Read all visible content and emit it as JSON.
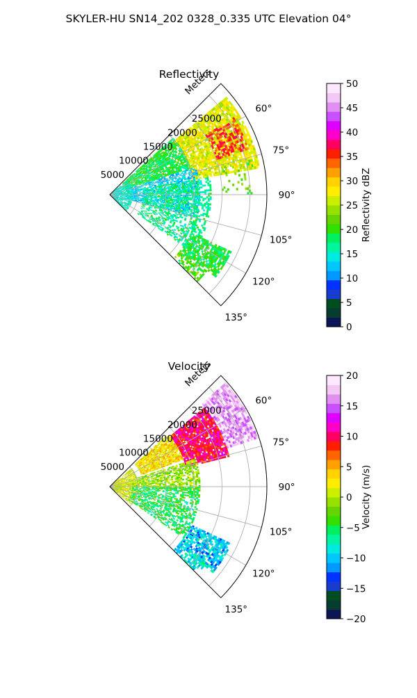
{
  "figure": {
    "suptitle": "SKYLER-HU  SN14_202  0328_0.335 UTC Elevation 04°"
  },
  "chart_data": [
    {
      "type": "heatmap",
      "subtype": "polar-sector",
      "title": "Reflectivity",
      "radial_axis_label": "Meters",
      "radial_ticks": [
        "5000",
        "10000",
        "15000",
        "20000",
        "25000"
      ],
      "radial_tick_values": [
        5000,
        10000,
        15000,
        20000,
        25000
      ],
      "radial_max": 28000,
      "azimuth_range_deg": [
        45,
        135
      ],
      "angular_ticks": [
        "60°",
        "75°",
        "90°",
        "105°",
        "120°",
        "135°"
      ],
      "angular_tick_values": [
        60,
        75,
        90,
        105,
        120,
        135
      ],
      "grid": true,
      "colorbar": {
        "label": "Reflectivity dBZ",
        "ticks": [
          "0",
          "5",
          "10",
          "15",
          "20",
          "25",
          "30",
          "35",
          "40",
          "45",
          "50"
        ],
        "tick_values": [
          0,
          5,
          10,
          15,
          20,
          25,
          30,
          35,
          40,
          45,
          50
        ],
        "range": [
          0,
          50
        ]
      },
      "colormap": [
        "#0b1454",
        "#063d2f",
        "#004d1f",
        "#1a3ccd",
        "#0033ff",
        "#0099ff",
        "#00c8ff",
        "#00ebe0",
        "#00f5a0",
        "#00f060",
        "#33e000",
        "#66d400",
        "#99e000",
        "#ccef00",
        "#ffee00",
        "#ffd200",
        "#ffa000",
        "#ff6400",
        "#ff1e00",
        "#ff0060",
        "#ff00c8",
        "#e000ff",
        "#c850ff",
        "#e090f0",
        "#f4c8f4",
        "#fce8fc"
      ],
      "echo_regions": [
        {
          "az": [
            50,
            80
          ],
          "range": [
            15000,
            27000
          ],
          "value": 27,
          "density": 0.85
        },
        {
          "az": [
            58,
            72
          ],
          "range": [
            20000,
            26000
          ],
          "value": 35,
          "density": 0.55
        },
        {
          "az": [
            48,
            72
          ],
          "range": [
            3000,
            15000
          ],
          "value": 19,
          "density": 0.8
        },
        {
          "az": [
            72,
            105
          ],
          "range": [
            3000,
            16000
          ],
          "value": 13,
          "density": 0.55
        },
        {
          "az": [
            80,
            125
          ],
          "range": [
            6000,
            18000
          ],
          "value": 17,
          "density": 0.45
        },
        {
          "az": [
            115,
            128
          ],
          "range": [
            16000,
            24000
          ],
          "value": 19,
          "density": 0.7
        },
        {
          "az": [
            128,
            136
          ],
          "range": [
            16000,
            22000
          ],
          "value": 21,
          "density": 0.6
        },
        {
          "az": [
            50,
            135
          ],
          "range": [
            300,
            4000
          ],
          "value": 15,
          "density": 0.5
        },
        {
          "az": [
            76,
            90
          ],
          "range": [
            20000,
            26000
          ],
          "value": 22,
          "density": 0.12
        }
      ]
    },
    {
      "type": "heatmap",
      "subtype": "polar-sector",
      "title": "Velocity",
      "radial_axis_label": "Meters",
      "radial_ticks": [
        "5000",
        "10000",
        "15000",
        "20000",
        "25000"
      ],
      "radial_tick_values": [
        5000,
        10000,
        15000,
        20000,
        25000
      ],
      "radial_max": 28000,
      "azimuth_range_deg": [
        45,
        135
      ],
      "angular_ticks": [
        "60°",
        "75°",
        "90°",
        "105°",
        "120°",
        "135°"
      ],
      "angular_tick_values": [
        60,
        75,
        90,
        105,
        120,
        135
      ],
      "grid": true,
      "colorbar": {
        "label": "Velocity (m/s)",
        "ticks": [
          "−20",
          "−15",
          "−10",
          "−5",
          "0",
          "5",
          "10",
          "15",
          "20"
        ],
        "tick_values": [
          -20,
          -15,
          -10,
          -5,
          0,
          5,
          10,
          15,
          20
        ],
        "range": [
          -20,
          20
        ]
      },
      "colormap": [
        "#0b1454",
        "#063d2f",
        "#004d1f",
        "#1a3ccd",
        "#0033ff",
        "#0099ff",
        "#00c8ff",
        "#00ebe0",
        "#00f5a0",
        "#00f060",
        "#33e000",
        "#66d400",
        "#99e000",
        "#ccef00",
        "#ffee00",
        "#ffd200",
        "#ffa000",
        "#ff6400",
        "#ff1e00",
        "#ff0060",
        "#ff00c8",
        "#e000ff",
        "#c850ff",
        "#e090f0",
        "#f4c8f4",
        "#fce8fc"
      ],
      "echo_regions": [
        {
          "az": [
            48,
            72
          ],
          "range": [
            22000,
            27500
          ],
          "value": 17,
          "density": 0.9
        },
        {
          "az": [
            50,
            76
          ],
          "range": [
            14000,
            22000
          ],
          "value": 10,
          "density": 0.9
        },
        {
          "az": [
            48,
            70
          ],
          "range": [
            6000,
            14000
          ],
          "value": 3,
          "density": 0.85
        },
        {
          "az": [
            50,
            130
          ],
          "range": [
            300,
            5000
          ],
          "value": 1,
          "density": 0.6
        },
        {
          "az": [
            72,
            92
          ],
          "range": [
            4000,
            16000
          ],
          "value": -1,
          "density": 0.6
        },
        {
          "az": [
            90,
            125
          ],
          "range": [
            4000,
            16000
          ],
          "value": -5,
          "density": 0.5
        },
        {
          "az": [
            115,
            130
          ],
          "range": [
            16000,
            24000
          ],
          "value": -10,
          "density": 0.75
        },
        {
          "az": [
            128,
            136
          ],
          "range": [
            16000,
            22000
          ],
          "value": -9,
          "density": 0.6
        }
      ]
    }
  ]
}
